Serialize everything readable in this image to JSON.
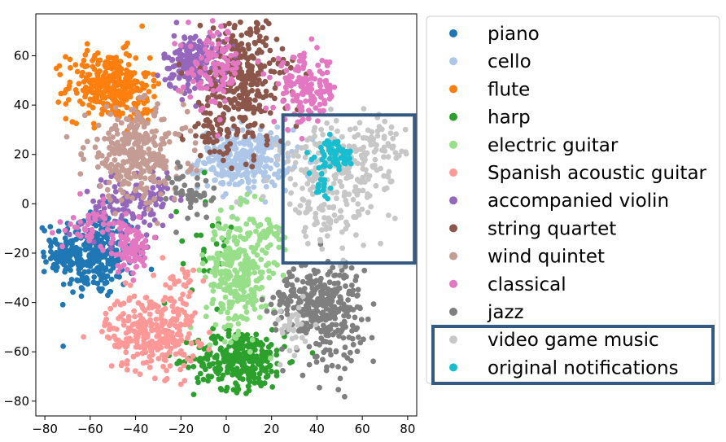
{
  "chart_data": {
    "type": "scatter",
    "title": "",
    "xlabel": "",
    "ylabel": "",
    "xlim": [
      -84,
      84
    ],
    "ylim": [
      -86,
      77
    ],
    "xticks": [
      -80,
      -60,
      -40,
      -20,
      0,
      20,
      40,
      60,
      80
    ],
    "yticks": [
      -80,
      -60,
      -40,
      -20,
      0,
      20,
      40,
      60
    ],
    "grid": false,
    "legend_position": "right",
    "series": [
      {
        "name": "piano",
        "color": "#1f77b4",
        "clusters": [
          {
            "cx": -58,
            "cy": -20,
            "sx": 9,
            "sy": 9,
            "n": 300
          },
          {
            "cx": -72,
            "cy": -20,
            "sx": 4,
            "sy": 3,
            "n": 40
          }
        ]
      },
      {
        "name": "cello",
        "color": "#aec7e8",
        "clusters": [
          {
            "cx": 8,
            "cy": 18,
            "sx": 10,
            "sy": 6,
            "n": 300
          }
        ]
      },
      {
        "name": "flute",
        "color": "#ff7f0e",
        "clusters": [
          {
            "cx": -52,
            "cy": 48,
            "sx": 9,
            "sy": 7,
            "n": 280
          },
          {
            "cx": -38,
            "cy": 40,
            "sx": 5,
            "sy": 4,
            "n": 30
          }
        ]
      },
      {
        "name": "harp",
        "color": "#2ca02c",
        "clusters": [
          {
            "cx": 6,
            "cy": -63,
            "sx": 10,
            "sy": 6,
            "n": 300
          },
          {
            "cx": -8,
            "cy": -15,
            "sx": 6,
            "sy": 12,
            "n": 25
          }
        ]
      },
      {
        "name": "electric guitar",
        "color": "#98df8a",
        "clusters": [
          {
            "cx": 5,
            "cy": -28,
            "sx": 7,
            "sy": 12,
            "n": 300
          },
          {
            "cx": 20,
            "cy": -12,
            "sx": 4,
            "sy": 4,
            "n": 30
          }
        ]
      },
      {
        "name": "Spanish acoustic guitar",
        "color": "#ff9896",
        "clusters": [
          {
            "cx": -33,
            "cy": -52,
            "sx": 10,
            "sy": 8,
            "n": 280
          },
          {
            "cx": -20,
            "cy": -33,
            "sx": 4,
            "sy": 6,
            "n": 30
          }
        ]
      },
      {
        "name": "accompanied violin",
        "color": "#9467bd",
        "clusters": [
          {
            "cx": -14,
            "cy": 57,
            "sx": 7,
            "sy": 6,
            "n": 160
          },
          {
            "cx": -45,
            "cy": -2,
            "sx": 9,
            "sy": 6,
            "n": 100
          },
          {
            "cx": -30,
            "cy": 5,
            "sx": 6,
            "sy": 5,
            "n": 40
          }
        ]
      },
      {
        "name": "string quartet",
        "color": "#8c564b",
        "clusters": [
          {
            "cx": 8,
            "cy": 50,
            "sx": 9,
            "sy": 14,
            "n": 300
          },
          {
            "cx": -5,
            "cy": 30,
            "sx": 6,
            "sy": 6,
            "n": 50
          }
        ]
      },
      {
        "name": "wind quintet",
        "color": "#c49c94",
        "clusters": [
          {
            "cx": -40,
            "cy": 20,
            "sx": 11,
            "sy": 9,
            "n": 300
          }
        ]
      },
      {
        "name": "classical",
        "color": "#e377c2",
        "clusters": [
          {
            "cx": 35,
            "cy": 46,
            "sx": 7,
            "sy": 7,
            "n": 150
          },
          {
            "cx": -5,
            "cy": 55,
            "sx": 6,
            "sy": 8,
            "n": 100
          },
          {
            "cx": -43,
            "cy": -18,
            "sx": 5,
            "sy": 5,
            "n": 90
          },
          {
            "cx": -60,
            "cy": -8,
            "sx": 5,
            "sy": 4,
            "n": 40
          }
        ]
      },
      {
        "name": "jazz",
        "color": "#7f7f7f",
        "clusters": [
          {
            "cx": 44,
            "cy": -43,
            "sx": 8,
            "sy": 10,
            "n": 300
          },
          {
            "cx": 28,
            "cy": -40,
            "sx": 5,
            "sy": 5,
            "n": 50
          },
          {
            "cx": -15,
            "cy": 5,
            "sx": 5,
            "sy": 6,
            "n": 40
          }
        ]
      },
      {
        "name": "video game music",
        "color": "#c7c7c7",
        "clusters": [
          {
            "cx": 48,
            "cy": 14,
            "sx": 12,
            "sy": 9,
            "n": 200
          },
          {
            "cx": 65,
            "cy": 22,
            "sx": 7,
            "sy": 6,
            "n": 60
          },
          {
            "cx": 45,
            "cy": -8,
            "sx": 9,
            "sy": 6,
            "n": 60
          },
          {
            "cx": 30,
            "cy": -50,
            "sx": 5,
            "sy": 6,
            "n": 30
          }
        ]
      },
      {
        "name": "original notifications",
        "color": "#17becf",
        "clusters": [
          {
            "cx": 48,
            "cy": 20,
            "sx": 4,
            "sy": 3,
            "n": 60
          },
          {
            "cx": 42,
            "cy": 8,
            "sx": 3,
            "sy": 3,
            "n": 15
          }
        ]
      }
    ],
    "highlight_boxes": [
      {
        "x0": 25,
        "x1": 83,
        "y0": -24,
        "y1": 36,
        "color": "#345a82"
      }
    ]
  }
}
